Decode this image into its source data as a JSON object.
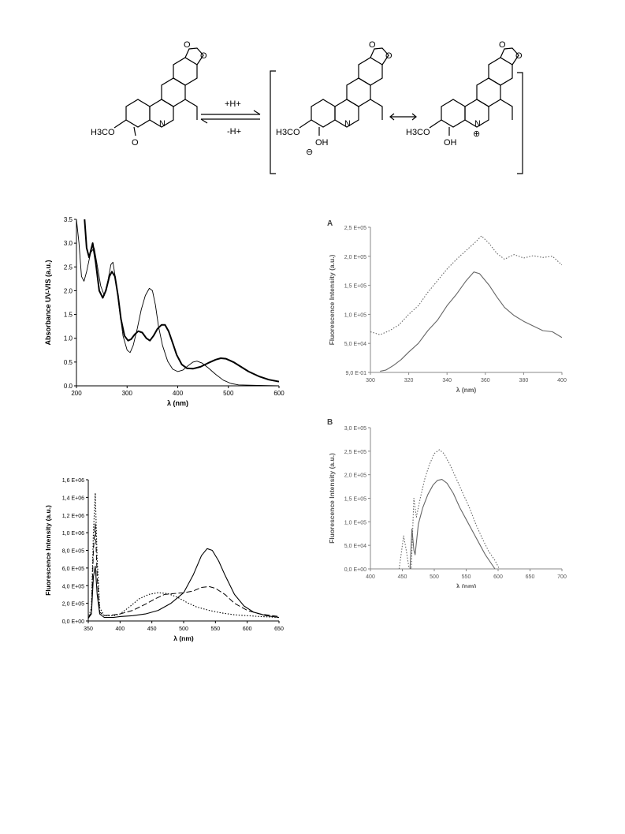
{
  "scheme": {
    "left_labels": {
      "methoxy": "H3CO",
      "carbonyl_O": "O",
      "nitrogen": "N"
    },
    "arrow_forward_label": "+H+",
    "arrow_backward_label": "-H+",
    "middle_labels": {
      "methoxy": "H3CO",
      "hydroxyl": "OH",
      "charge": "⊖",
      "nitrogen": "N"
    },
    "right_labels": {
      "methoxy": "H3CO",
      "hydroxyl": "OH",
      "charge": "⊕",
      "nitrogen": "N"
    },
    "ring_oxygen": "O"
  },
  "chart_data": [
    {
      "id": "uv",
      "type": "line",
      "title": "",
      "xlabel": "λ (nm)",
      "ylabel": "Absorbance UV-VIS (a.u.)",
      "xlim": [
        200,
        600
      ],
      "ylim": [
        0,
        3.5
      ],
      "xticks": [
        200,
        300,
        400,
        500,
        600
      ],
      "yticks": [
        "0.0",
        "0.5",
        "1.0",
        "1.5",
        "2.0",
        "2.5",
        "3.0",
        "3.5"
      ],
      "grid": false,
      "series": [
        {
          "style": "bold",
          "points": [
            [
              216,
              3.5
            ],
            [
              220,
              2.9
            ],
            [
              225,
              2.7
            ],
            [
              232,
              3.0
            ],
            [
              238,
              2.6
            ],
            [
              245,
              2.0
            ],
            [
              252,
              1.85
            ],
            [
              258,
              2.0
            ],
            [
              265,
              2.3
            ],
            [
              270,
              2.4
            ],
            [
              276,
              2.3
            ],
            [
              282,
              1.9
            ],
            [
              288,
              1.4
            ],
            [
              295,
              1.05
            ],
            [
              302,
              0.95
            ],
            [
              308,
              0.98
            ],
            [
              315,
              1.08
            ],
            [
              322,
              1.15
            ],
            [
              330,
              1.12
            ],
            [
              338,
              1.0
            ],
            [
              345,
              0.95
            ],
            [
              352,
              1.05
            ],
            [
              360,
              1.2
            ],
            [
              368,
              1.28
            ],
            [
              375,
              1.28
            ],
            [
              382,
              1.15
            ],
            [
              390,
              0.9
            ],
            [
              398,
              0.65
            ],
            [
              408,
              0.45
            ],
            [
              418,
              0.37
            ],
            [
              430,
              0.36
            ],
            [
              445,
              0.4
            ],
            [
              460,
              0.48
            ],
            [
              475,
              0.55
            ],
            [
              485,
              0.58
            ],
            [
              495,
              0.57
            ],
            [
              510,
              0.5
            ],
            [
              525,
              0.4
            ],
            [
              540,
              0.3
            ],
            [
              560,
              0.2
            ],
            [
              580,
              0.13
            ],
            [
              600,
              0.09
            ]
          ]
        },
        {
          "style": "thin",
          "points": [
            [
              200,
              3.5
            ],
            [
              205,
              3.0
            ],
            [
              210,
              2.3
            ],
            [
              215,
              2.2
            ],
            [
              220,
              2.4
            ],
            [
              228,
              2.8
            ],
            [
              235,
              2.9
            ],
            [
              240,
              2.6
            ],
            [
              248,
              2.1
            ],
            [
              255,
              1.9
            ],
            [
              262,
              2.2
            ],
            [
              268,
              2.55
            ],
            [
              272,
              2.6
            ],
            [
              278,
              2.2
            ],
            [
              285,
              1.6
            ],
            [
              292,
              1.05
            ],
            [
              300,
              0.75
            ],
            [
              306,
              0.7
            ],
            [
              312,
              0.85
            ],
            [
              320,
              1.2
            ],
            [
              328,
              1.6
            ],
            [
              336,
              1.9
            ],
            [
              344,
              2.05
            ],
            [
              350,
              2.0
            ],
            [
              356,
              1.7
            ],
            [
              362,
              1.25
            ],
            [
              370,
              0.85
            ],
            [
              380,
              0.52
            ],
            [
              390,
              0.35
            ],
            [
              400,
              0.3
            ],
            [
              410,
              0.33
            ],
            [
              420,
              0.42
            ],
            [
              430,
              0.5
            ],
            [
              438,
              0.52
            ],
            [
              448,
              0.48
            ],
            [
              460,
              0.38
            ],
            [
              475,
              0.24
            ],
            [
              490,
              0.12
            ],
            [
              505,
              0.05
            ],
            [
              520,
              0.02
            ],
            [
              560,
              0.01
            ],
            [
              600,
              0.0
            ]
          ]
        }
      ]
    },
    {
      "id": "fluor_main",
      "type": "line",
      "title": "",
      "xlabel": "λ (nm)",
      "ylabel": "Fluorescence Intensity (a.u.)",
      "xlim": [
        350,
        650
      ],
      "ylim": [
        0,
        1600000
      ],
      "xticks": [
        350,
        400,
        450,
        500,
        550,
        600,
        650
      ],
      "yticks": [
        "0,0 E+00",
        "2,0 E+05",
        "4,0 E+05",
        "6,0 E+05",
        "8,0 E+05",
        "1,0 E+06",
        "1,2 E+06",
        "1,4 E+06",
        "1,6 E+06"
      ],
      "grid": false,
      "series": [
        {
          "style": "solid",
          "points": [
            [
              350,
              30000
            ],
            [
              355,
              80000
            ],
            [
              358,
              500000
            ],
            [
              361,
              620000
            ],
            [
              364,
              300000
            ],
            [
              368,
              80000
            ],
            [
              375,
              40000
            ],
            [
              390,
              40000
            ],
            [
              400,
              50000
            ],
            [
              420,
              60000
            ],
            [
              440,
              80000
            ],
            [
              460,
              120000
            ],
            [
              480,
              200000
            ],
            [
              500,
              320000
            ],
            [
              515,
              520000
            ],
            [
              528,
              740000
            ],
            [
              537,
              820000
            ],
            [
              545,
              800000
            ],
            [
              555,
              680000
            ],
            [
              565,
              520000
            ],
            [
              580,
              300000
            ],
            [
              595,
              170000
            ],
            [
              610,
              100000
            ],
            [
              630,
              60000
            ],
            [
              650,
              40000
            ]
          ]
        },
        {
          "style": "dashed",
          "points": [
            [
              350,
              30000
            ],
            [
              355,
              100000
            ],
            [
              358,
              800000
            ],
            [
              361,
              1100000
            ],
            [
              364,
              500000
            ],
            [
              368,
              100000
            ],
            [
              375,
              60000
            ],
            [
              390,
              70000
            ],
            [
              400,
              80000
            ],
            [
              420,
              120000
            ],
            [
              440,
              190000
            ],
            [
              455,
              250000
            ],
            [
              470,
              300000
            ],
            [
              485,
              310000
            ],
            [
              500,
              320000
            ],
            [
              515,
              340000
            ],
            [
              528,
              380000
            ],
            [
              540,
              390000
            ],
            [
              550,
              370000
            ],
            [
              565,
              300000
            ],
            [
              580,
              200000
            ],
            [
              600,
              120000
            ],
            [
              620,
              80000
            ],
            [
              650,
              50000
            ]
          ]
        },
        {
          "style": "dotted",
          "points": [
            [
              350,
              30000
            ],
            [
              355,
              150000
            ],
            [
              358,
              1000000
            ],
            [
              361,
              1450000
            ],
            [
              364,
              700000
            ],
            [
              368,
              150000
            ],
            [
              375,
              60000
            ],
            [
              390,
              60000
            ],
            [
              400,
              80000
            ],
            [
              415,
              160000
            ],
            [
              430,
              250000
            ],
            [
              445,
              300000
            ],
            [
              460,
              320000
            ],
            [
              475,
              310000
            ],
            [
              490,
              270000
            ],
            [
              505,
              210000
            ],
            [
              520,
              160000
            ],
            [
              540,
              120000
            ],
            [
              560,
              90000
            ],
            [
              580,
              70000
            ],
            [
              600,
              60000
            ],
            [
              620,
              50000
            ],
            [
              650,
              40000
            ]
          ]
        }
      ]
    },
    {
      "id": "A",
      "panel_label": "A",
      "type": "line",
      "title": "",
      "xlabel": "λ (nm)",
      "ylabel": "Fluorescence Intensity (a.u.)",
      "xlim": [
        300,
        400
      ],
      "ylim": [
        0,
        250000
      ],
      "xticks": [
        300,
        320,
        340,
        360,
        380,
        400
      ],
      "yticks": [
        "9,0 E-01",
        "5,0 E+04",
        "1,0 E+05",
        "1,5 E+05",
        "2,0 E+05",
        "2,5 E+05"
      ],
      "grid": false,
      "series": [
        {
          "style": "dotted",
          "points": [
            [
              300,
              70000
            ],
            [
              305,
              65000
            ],
            [
              310,
              72000
            ],
            [
              315,
              82000
            ],
            [
              320,
              100000
            ],
            [
              325,
              115000
            ],
            [
              330,
              138000
            ],
            [
              335,
              158000
            ],
            [
              340,
              178000
            ],
            [
              345,
              195000
            ],
            [
              350,
              210000
            ],
            [
              355,
              225000
            ],
            [
              358,
              235000
            ],
            [
              362,
              222000
            ],
            [
              366,
              205000
            ],
            [
              370,
              195000
            ],
            [
              375,
              203000
            ],
            [
              380,
              197000
            ],
            [
              385,
              201000
            ],
            [
              390,
              198000
            ],
            [
              395,
              200000
            ],
            [
              400,
              185000
            ]
          ]
        },
        {
          "style": "solid",
          "points": [
            [
              305,
              2000
            ],
            [
              308,
              4000
            ],
            [
              312,
              12000
            ],
            [
              316,
              22000
            ],
            [
              320,
              35000
            ],
            [
              325,
              50000
            ],
            [
              330,
              72000
            ],
            [
              335,
              90000
            ],
            [
              340,
              115000
            ],
            [
              345,
              135000
            ],
            [
              350,
              158000
            ],
            [
              354,
              173000
            ],
            [
              357,
              170000
            ],
            [
              362,
              150000
            ],
            [
              366,
              130000
            ],
            [
              370,
              112000
            ],
            [
              375,
              98000
            ],
            [
              380,
              88000
            ],
            [
              385,
              80000
            ],
            [
              390,
              72000
            ],
            [
              395,
              70000
            ],
            [
              400,
              60000
            ]
          ]
        }
      ]
    },
    {
      "id": "B",
      "panel_label": "B",
      "type": "line",
      "title": "",
      "xlabel": "λ (nm)",
      "ylabel": "Fluorescence Intensity (a.u.)",
      "xlim": [
        400,
        700
      ],
      "ylim": [
        0,
        300000
      ],
      "xticks": [
        400,
        450,
        500,
        550,
        600,
        650,
        700
      ],
      "yticks": [
        "0,0 E+00",
        "5,0 E+04",
        "1,0 E+05",
        "1,5 E+05",
        "2,0 E+05",
        "2,5 E+05",
        "3,0 E+05"
      ],
      "grid": false,
      "series": [
        {
          "style": "dotted",
          "points": [
            [
              445,
              0
            ],
            [
              448,
              30000
            ],
            [
              452,
              70000
            ],
            [
              456,
              40000
            ],
            [
              460,
              5000
            ],
            [
              464,
              0
            ],
            [
              468,
              150000
            ],
            [
              472,
              110000
            ],
            [
              478,
              150000
            ],
            [
              485,
              190000
            ],
            [
              492,
              220000
            ],
            [
              500,
              245000
            ],
            [
              508,
              253000
            ],
            [
              515,
              245000
            ],
            [
              525,
              220000
            ],
            [
              535,
              190000
            ],
            [
              545,
              160000
            ],
            [
              555,
              130000
            ],
            [
              565,
              95000
            ],
            [
              575,
              65000
            ],
            [
              585,
              38000
            ],
            [
              595,
              18000
            ],
            [
              602,
              0
            ]
          ]
        },
        {
          "style": "solid",
          "points": [
            [
              462,
              0
            ],
            [
              465,
              85000
            ],
            [
              468,
              40000
            ],
            [
              470,
              30000
            ],
            [
              475,
              95000
            ],
            [
              482,
              130000
            ],
            [
              490,
              158000
            ],
            [
              498,
              178000
            ],
            [
              505,
              188000
            ],
            [
              512,
              190000
            ],
            [
              520,
              182000
            ],
            [
              530,
              160000
            ],
            [
              540,
              130000
            ],
            [
              550,
              105000
            ],
            [
              560,
              80000
            ],
            [
              570,
              55000
            ],
            [
              580,
              30000
            ],
            [
              590,
              10000
            ],
            [
              595,
              0
            ]
          ]
        }
      ]
    }
  ]
}
